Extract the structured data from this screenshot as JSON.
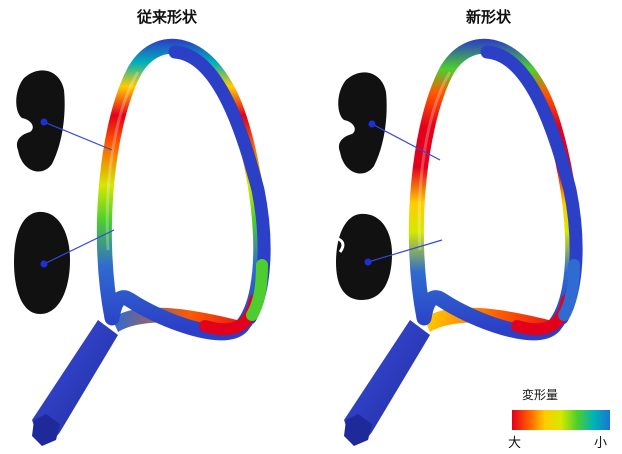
{
  "left_panel": {
    "title": "従来形状"
  },
  "right_panel": {
    "title": "新形状"
  },
  "legend": {
    "title": "変形量",
    "max_label": "大",
    "min_label": "小",
    "colors": [
      "#e3001b",
      "#ff5a00",
      "#ffcc00",
      "#d6e800",
      "#4ccf2e",
      "#00b3b8",
      "#1976d2"
    ]
  },
  "palette": {
    "frame_blue": "#2b3fc7",
    "handle_blue": "#2c39b5",
    "cross_section": "#111111",
    "marker": "#1c2fd9",
    "leader_line": "#3346e0"
  }
}
